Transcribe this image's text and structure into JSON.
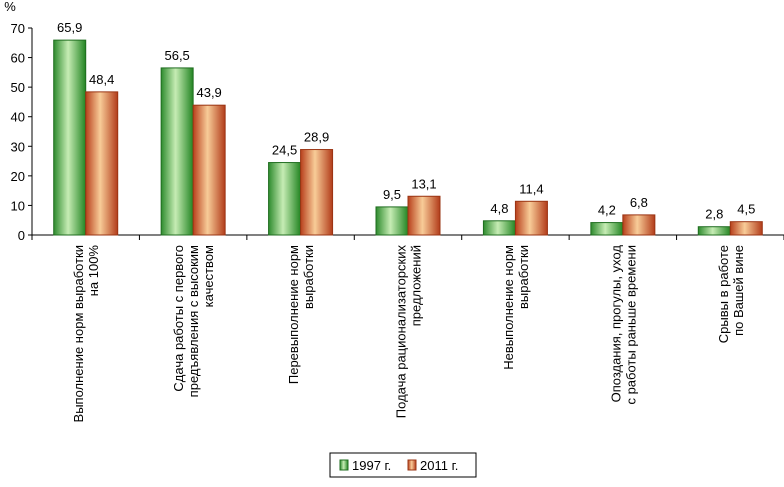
{
  "chart_data": {
    "type": "bar",
    "title": "",
    "xlabel": "",
    "ylabel": "%",
    "ylim": [
      0,
      70
    ],
    "yticks": [
      0,
      10,
      20,
      30,
      40,
      50,
      60,
      70
    ],
    "grid": false,
    "legend_position": "bottom-center",
    "categories": [
      [
        "Выполнение норм выработки",
        "на 100%"
      ],
      [
        "Сдача работы с первого",
        "предъявления с высоким",
        "качеством"
      ],
      [
        "Перевыполнение норм",
        "выработки"
      ],
      [
        "Подача рационализаторских",
        "предложений"
      ],
      [
        "Невыполнение норм",
        "выработки"
      ],
      [
        "Опоздания, прогулы, уход",
        "с работы раньше времени"
      ],
      [
        "Срывы в работе",
        "по Вашей вине"
      ]
    ],
    "series": [
      {
        "name": "1997 г.",
        "values": [
          65.9,
          56.5,
          24.5,
          9.5,
          4.8,
          4.2,
          2.8
        ],
        "labels": [
          "65,9",
          "56,5",
          "24,5",
          "9,5",
          "4,8",
          "4,2",
          "2,8"
        ],
        "color": "#2e9a2e"
      },
      {
        "name": "2011 г.",
        "values": [
          48.4,
          43.9,
          28.9,
          13.1,
          11.4,
          6.8,
          4.5
        ],
        "labels": [
          "48,4",
          "43,9",
          "28,9",
          "13,1",
          "11,4",
          "6,8",
          "4,5"
        ],
        "color": "#c0502a"
      }
    ]
  }
}
